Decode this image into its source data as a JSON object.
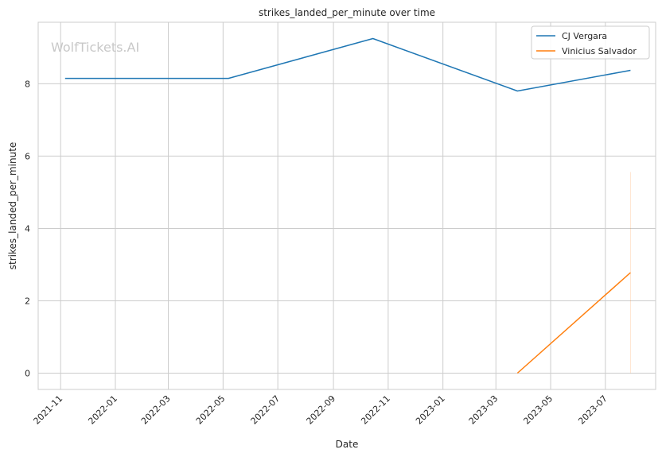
{
  "chart_data": {
    "type": "line",
    "title": "strikes_landed_per_minute over time",
    "xlabel": "Date",
    "ylabel": "strikes_landed_per_minute",
    "watermark": "WolfTickets.AI",
    "x_ticks": [
      "2021-11",
      "2022-01",
      "2022-03",
      "2022-05",
      "2022-07",
      "2022-09",
      "2022-11",
      "2023-01",
      "2023-03",
      "2023-05",
      "2023-07"
    ],
    "y_ticks": [
      0,
      2,
      4,
      6,
      8
    ],
    "xlim": [
      "2021-10-07",
      "2023-08-26"
    ],
    "ylim": [
      -0.45,
      9.7
    ],
    "grid": true,
    "legend_position": "top-right",
    "series": [
      {
        "name": "CJ Vergara",
        "color": "#1f77b4",
        "x": [
          "2021-11-06",
          "2022-05-07",
          "2022-10-15",
          "2023-03-25",
          "2023-07-29"
        ],
        "y": [
          8.15,
          8.15,
          9.25,
          7.8,
          8.37
        ]
      },
      {
        "name": "Vinicius Salvador",
        "color": "#ff7f0e",
        "x": [
          "2023-03-25",
          "2023-07-29"
        ],
        "y": [
          0.0,
          2.78
        ]
      }
    ],
    "band": {
      "x": "2023-07-29",
      "y_range": [
        0.0,
        5.56
      ],
      "color": "#ff7f0e"
    }
  }
}
